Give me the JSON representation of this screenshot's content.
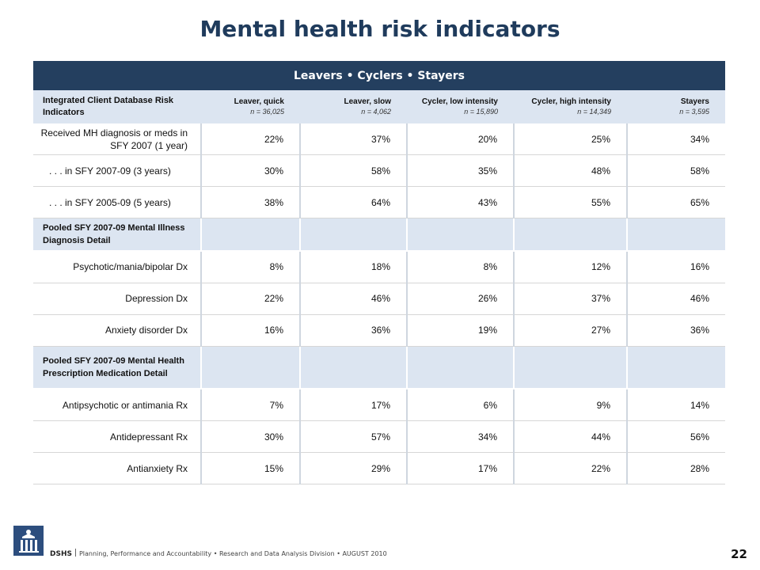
{
  "title": "Mental health risk indicators",
  "band": "Leavers • Cyclers • Stayers",
  "header": {
    "row_label": "Integrated Client Database Risk Indicators",
    "columns": [
      {
        "name": "Leaver, quick",
        "n": "n = 36,025"
      },
      {
        "name": "Leaver, slow",
        "n": "n = 4,062"
      },
      {
        "name": "Cycler, low intensity",
        "n": "n = 15,890"
      },
      {
        "name": "Cycler, high intensity",
        "n": "n = 14,349"
      },
      {
        "name": "Stayers",
        "n": "n = 3,595"
      }
    ]
  },
  "rows": [
    {
      "label": "Received MH diagnosis or meds in SFY 2007 (1 year)",
      "values": [
        "22%",
        "37%",
        "20%",
        "25%",
        "34%"
      ]
    },
    {
      "label": ". . . in SFY 2007-09 (3 years)",
      "values": [
        "30%",
        "58%",
        "35%",
        "48%",
        "58%"
      ]
    },
    {
      "label": ". . . in SFY 2005-09 (5 years)",
      "values": [
        "38%",
        "64%",
        "43%",
        "55%",
        "65%"
      ]
    },
    {
      "section": "Pooled SFY 2007-09 Mental Illness Diagnosis Detail"
    },
    {
      "label": "Psychotic/mania/bipolar Dx",
      "values": [
        "8%",
        "18%",
        "8%",
        "12%",
        "16%"
      ]
    },
    {
      "label": "Depression Dx",
      "values": [
        "22%",
        "46%",
        "26%",
        "37%",
        "46%"
      ]
    },
    {
      "label": "Anxiety disorder Dx",
      "values": [
        "16%",
        "36%",
        "19%",
        "27%",
        "36%"
      ]
    },
    {
      "section": "Pooled SFY 2007-09 Mental Health Prescription Medication Detail"
    },
    {
      "label": "Antipsychotic or antimania Rx",
      "values": [
        "7%",
        "17%",
        "6%",
        "9%",
        "14%"
      ]
    },
    {
      "label": "Antidepressant Rx",
      "values": [
        "30%",
        "57%",
        "34%",
        "44%",
        "56%"
      ]
    },
    {
      "label": "Antianxiety Rx",
      "values": [
        "15%",
        "29%",
        "17%",
        "22%",
        "28%"
      ]
    }
  ],
  "footer": {
    "org": "DSHS",
    "text": "Planning, Performance and Accountability • Research and Data Analysis Division • AUGUST 2010",
    "page": "22"
  },
  "colors": {
    "band": "#243f5f",
    "title": "#1f3b5c",
    "header_fill": "#dce5f1"
  }
}
